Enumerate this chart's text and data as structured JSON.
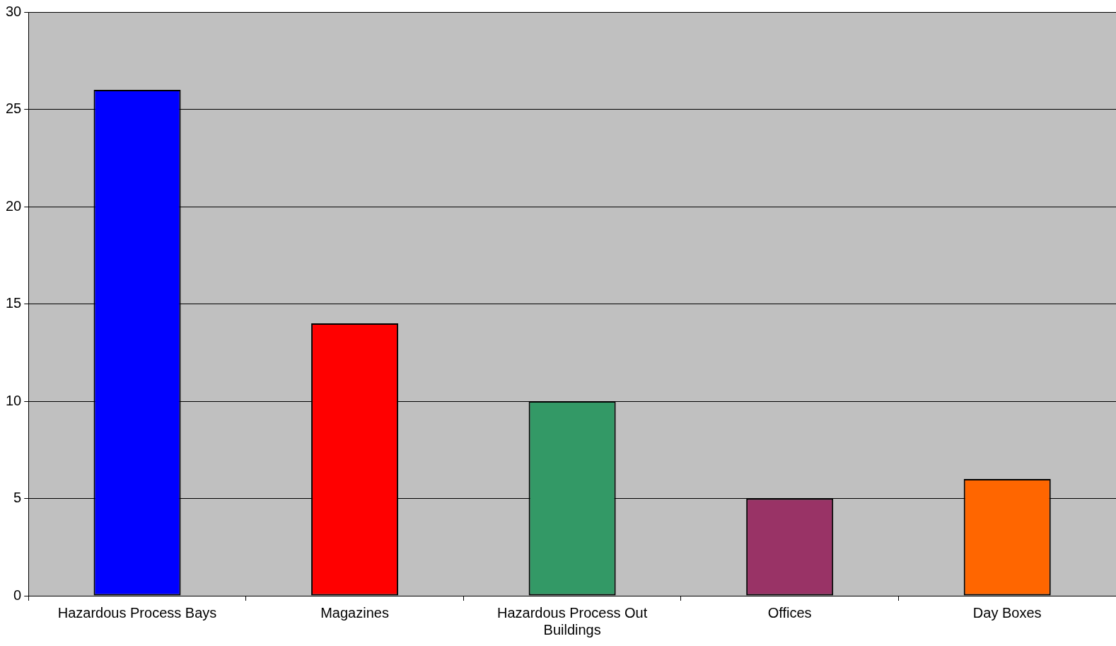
{
  "chart_data": {
    "type": "bar",
    "categories": [
      "Hazardous Process Bays",
      "Magazines",
      "Hazardous Process Out Buildings",
      "Offices",
      "Day Boxes"
    ],
    "values": [
      26,
      14,
      10,
      5,
      6
    ],
    "colors": [
      "#0000ff",
      "#ff0000",
      "#339966",
      "#993366",
      "#ff6600"
    ],
    "ylim": [
      0,
      30
    ],
    "yticks": [
      0,
      5,
      10,
      15,
      20,
      25,
      30
    ],
    "grid": "y",
    "legend": false
  }
}
